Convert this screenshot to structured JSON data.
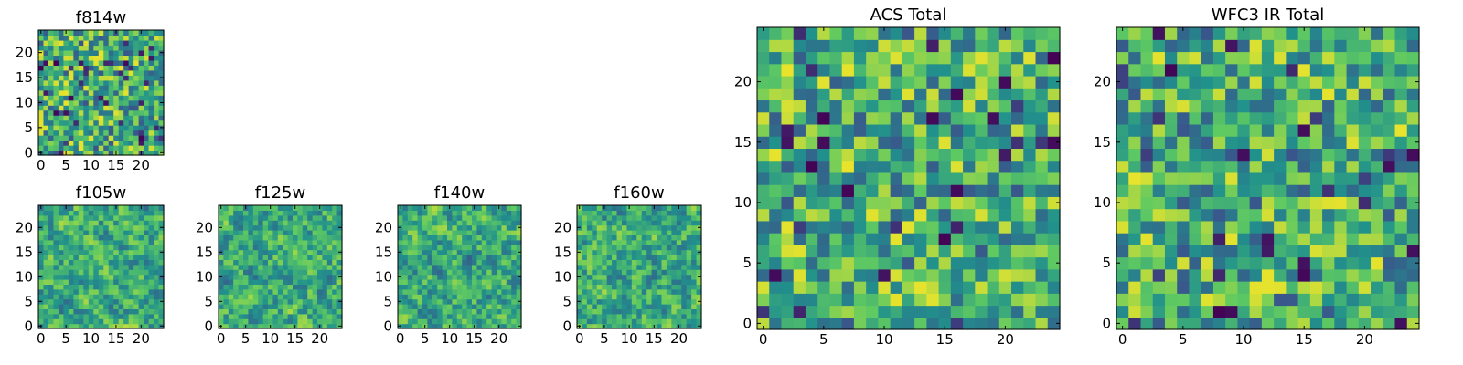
{
  "chart_data": [
    {
      "type": "heatmap",
      "title": "f814w",
      "xticks": [
        "0",
        "5",
        "10",
        "15",
        "20"
      ],
      "yticks": [
        "0",
        "5",
        "10",
        "15",
        "20"
      ],
      "xlim": [
        -0.5,
        24.5
      ],
      "ylim": [
        -0.5,
        24.5
      ],
      "grid": false,
      "colormap": "viridis",
      "texture": "uniform",
      "seed": 814
    },
    {
      "type": "heatmap",
      "title": "f105w",
      "xticks": [
        "0",
        "5",
        "10",
        "15",
        "20"
      ],
      "yticks": [
        "0",
        "5",
        "10",
        "15",
        "20"
      ],
      "xlim": [
        -0.5,
        24.5
      ],
      "ylim": [
        -0.5,
        24.5
      ],
      "grid": false,
      "colormap": "viridis",
      "texture": "smooth",
      "seed": 105
    },
    {
      "type": "heatmap",
      "title": "f125w",
      "xticks": [
        "0",
        "5",
        "10",
        "15",
        "20"
      ],
      "yticks": [
        "0",
        "5",
        "10",
        "15",
        "20"
      ],
      "xlim": [
        -0.5,
        24.5
      ],
      "ylim": [
        -0.5,
        24.5
      ],
      "grid": false,
      "colormap": "viridis",
      "texture": "smooth",
      "seed": 125
    },
    {
      "type": "heatmap",
      "title": "f140w",
      "xticks": [
        "0",
        "5",
        "10",
        "15",
        "20"
      ],
      "yticks": [
        "0",
        "5",
        "10",
        "15",
        "20"
      ],
      "xlim": [
        -0.5,
        24.5
      ],
      "ylim": [
        -0.5,
        24.5
      ],
      "grid": false,
      "colormap": "viridis",
      "texture": "smooth",
      "seed": 140
    },
    {
      "type": "heatmap",
      "title": "f160w",
      "xticks": [
        "0",
        "5",
        "10",
        "15",
        "20"
      ],
      "yticks": [
        "0",
        "5",
        "10",
        "15",
        "20"
      ],
      "xlim": [
        -0.5,
        24.5
      ],
      "ylim": [
        -0.5,
        24.5
      ],
      "grid": false,
      "colormap": "viridis",
      "texture": "smooth",
      "seed": 160
    },
    {
      "type": "heatmap",
      "title": "ACS Total",
      "xticks": [
        "0",
        "5",
        "10",
        "15",
        "20"
      ],
      "yticks": [
        "0",
        "5",
        "10",
        "15",
        "20"
      ],
      "xlim": [
        -0.5,
        24.5
      ],
      "ylim": [
        -0.5,
        24.5
      ],
      "grid": false,
      "colormap": "viridis",
      "texture": "uniform",
      "seed": 900
    },
    {
      "type": "heatmap",
      "title": "WFC3 IR Total",
      "xticks": [
        "0",
        "5",
        "10",
        "15",
        "20"
      ],
      "yticks": [
        "0",
        "5",
        "10",
        "15",
        "20"
      ],
      "xlim": [
        -0.5,
        24.5
      ],
      "ylim": [
        -0.5,
        24.5
      ],
      "grid": false,
      "colormap": "viridis",
      "texture": "uniform",
      "seed": 3
    }
  ],
  "colors": {
    "frame": "#000000",
    "background": "#ffffff",
    "viridis_stops": [
      "#440154",
      "#3b528b",
      "#21918c",
      "#5ec962",
      "#fde725"
    ]
  }
}
